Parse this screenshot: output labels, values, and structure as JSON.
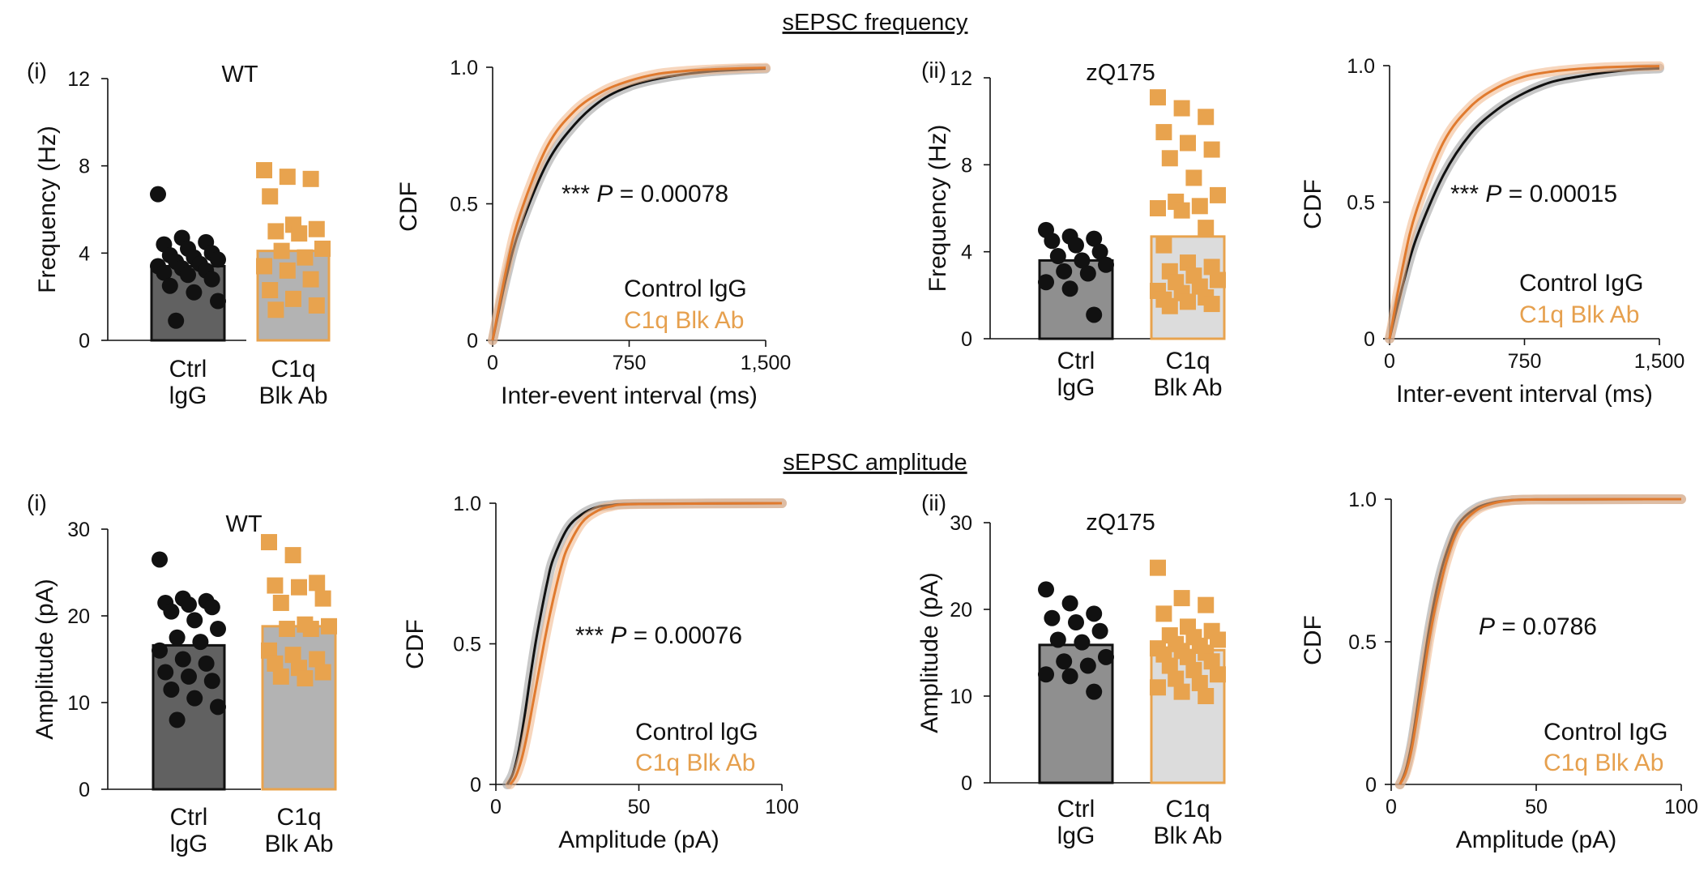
{
  "sections": [
    {
      "title": "sEPSC frequency"
    },
    {
      "title": "sEPSC amplitude"
    }
  ],
  "colors": {
    "ctrl_dot": "#111111",
    "ab_square": "#E8A34E",
    "bar_ctrl_wt": "#616161",
    "bar_ctrl_zq": "#8F8F8F",
    "bar_ab_wt": "#B3B3B3",
    "bar_ab_zq": "#DCDCDC",
    "cdf_ctrl": "#111111",
    "cdf_ab": "#E07A2E",
    "legend_ab_text": "#E6A04E"
  },
  "chart_data": [
    {
      "id": "freq-wt-bar",
      "type": "bar",
      "panel_label": "(i)",
      "title": "WT",
      "categories": [
        "Ctrl\nlgG",
        "C1q\nBlk Ab"
      ],
      "values": [
        3.4,
        4.1
      ],
      "ylabel": "Frequency (Hz)",
      "ylim": [
        0,
        12
      ],
      "yticks": [
        "0",
        "4",
        "8",
        "12"
      ],
      "points": [
        [
          6.7,
          4.7,
          4.5,
          4.4,
          4.2,
          4.0,
          3.9,
          3.8,
          3.7,
          3.6,
          3.5,
          3.4,
          3.3,
          3.2,
          3.1,
          3.0,
          2.8,
          2.5,
          2.2,
          1.8,
          0.9
        ],
        [
          7.8,
          7.5,
          7.4,
          6.6,
          5.3,
          5.1,
          5.0,
          4.9,
          4.2,
          4.1,
          3.8,
          3.4,
          3.2,
          2.8,
          2.3,
          1.9,
          1.6,
          1.4
        ]
      ]
    },
    {
      "id": "freq-wt-cdf",
      "type": "line",
      "xlabel": "Inter-event interval (ms)",
      "ylabel": "CDF",
      "xlim": [
        0,
        1500
      ],
      "ylim": [
        0,
        1
      ],
      "xticks": [
        "0",
        "750",
        "1,500"
      ],
      "yticks": [
        "0",
        "0.5",
        "1.0"
      ],
      "annotation": {
        "stars": "***",
        "p": "P",
        "rest": " = 0.00078"
      },
      "series": [
        {
          "name": "Control lgG",
          "tau": 285,
          "x": [
            0,
            75,
            150,
            300,
            450,
            600,
            750,
            900,
            1050,
            1200,
            1350,
            1500
          ],
          "y": [
            0,
            0.23,
            0.41,
            0.65,
            0.79,
            0.88,
            0.93,
            0.957,
            0.974,
            0.985,
            0.991,
            0.995
          ]
        },
        {
          "name": "C1q Blk Ab",
          "tau": 245,
          "x": [
            0,
            75,
            150,
            300,
            450,
            600,
            750,
            900,
            1050,
            1200,
            1350,
            1500
          ],
          "y": [
            0,
            0.26,
            0.46,
            0.71,
            0.84,
            0.91,
            0.95,
            0.975,
            0.986,
            0.992,
            0.996,
            0.998
          ]
        }
      ]
    },
    {
      "id": "freq-zq-bar",
      "type": "bar",
      "panel_label": "(ii)",
      "title": "zQ175",
      "categories": [
        "Ctrl\nlgG",
        "C1q\nBlk Ab"
      ],
      "values": [
        3.6,
        4.7
      ],
      "ylabel": "Frequency (Hz)",
      "ylim": [
        0,
        12
      ],
      "yticks": [
        "0",
        "4",
        "8",
        "12"
      ],
      "points": [
        [
          5.0,
          4.7,
          4.6,
          4.5,
          4.3,
          4.0,
          3.8,
          3.6,
          3.4,
          3.1,
          3.0,
          2.6,
          2.3,
          1.1
        ],
        [
          11.1,
          10.6,
          10.2,
          9.5,
          9.0,
          8.7,
          8.3,
          7.4,
          6.6,
          6.3,
          6.1,
          6.0,
          5.9,
          5.1,
          4.3,
          3.5,
          3.3,
          3.1,
          2.9,
          2.7,
          2.6,
          2.4,
          2.2,
          2.1,
          1.9,
          1.8,
          1.7,
          1.6,
          1.5
        ]
      ]
    },
    {
      "id": "freq-zq-cdf",
      "type": "line",
      "xlabel": "Inter-event interval (ms)",
      "ylabel": "CDF",
      "xlim": [
        0,
        1500
      ],
      "ylim": [
        0,
        1
      ],
      "xticks": [
        "0",
        "750",
        "1,500"
      ],
      "yticks": [
        "0",
        "0.5",
        "1.0"
      ],
      "annotation": {
        "stars": "***",
        "p": "P",
        "rest": " = 0.00015"
      },
      "series": [
        {
          "name": "Control IgG",
          "tau": 330,
          "x": [
            0,
            75,
            150,
            300,
            450,
            600,
            750,
            900,
            1050,
            1200,
            1350,
            1500
          ],
          "y": [
            0,
            0.2,
            0.37,
            0.6,
            0.75,
            0.84,
            0.9,
            0.94,
            0.96,
            0.975,
            0.985,
            0.99
          ]
        },
        {
          "name": "C1q Blk Ab",
          "tau": 235,
          "x": [
            0,
            75,
            150,
            300,
            450,
            600,
            750,
            900,
            1050,
            1200,
            1350,
            1500
          ],
          "y": [
            0,
            0.27,
            0.47,
            0.72,
            0.85,
            0.92,
            0.96,
            0.978,
            0.988,
            0.994,
            0.997,
            0.998
          ]
        }
      ]
    },
    {
      "id": "amp-wt-bar",
      "type": "bar",
      "panel_label": "(i)",
      "title": "WT",
      "categories": [
        "Ctrl\nlgG",
        "C1q\nBlk Ab"
      ],
      "values": [
        16.6,
        18.8
      ],
      "ylabel": "Amplitude (pA)",
      "ylim": [
        0,
        30
      ],
      "yticks": [
        "0",
        "10",
        "20",
        "30"
      ],
      "points": [
        [
          26.5,
          22.0,
          21.7,
          21.5,
          21.3,
          21.0,
          20.5,
          19.5,
          18.5,
          17.5,
          17.0,
          16.0,
          15.0,
          14.5,
          13.5,
          13.0,
          12.5,
          11.5,
          10.5,
          9.5,
          8.0
        ],
        [
          28.5,
          27.0,
          23.8,
          23.5,
          23.3,
          22.0,
          21.5,
          19.0,
          18.8,
          18.5,
          18.5,
          16.0,
          15.5,
          15.0,
          14.5,
          14.0,
          13.5,
          13.0,
          12.8
        ]
      ]
    },
    {
      "id": "amp-wt-cdf",
      "type": "line",
      "xlabel": "Amplitude (pA)",
      "ylabel": "CDF",
      "xlim": [
        0,
        100
      ],
      "ylim": [
        0,
        1
      ],
      "xticks": [
        "0",
        "50",
        "100"
      ],
      "yticks": [
        "0",
        "0.5",
        "1.0"
      ],
      "annotation": {
        "stars": "***",
        "p": "P",
        "rest": " = 0.00076"
      },
      "series": [
        {
          "name": "Control lgG",
          "x": [
            4,
            6,
            8,
            10,
            12,
            14,
            16,
            18,
            20,
            25,
            30,
            35,
            40,
            50,
            100
          ],
          "y": [
            0,
            0.04,
            0.12,
            0.24,
            0.38,
            0.51,
            0.62,
            0.72,
            0.8,
            0.91,
            0.96,
            0.985,
            0.993,
            0.998,
            1.0
          ]
        },
        {
          "name": "C1q Blk Ab",
          "x": [
            5,
            7,
            9,
            11,
            13,
            15,
            17,
            19,
            21,
            23,
            25,
            30,
            35,
            40,
            50,
            100
          ],
          "y": [
            0,
            0.03,
            0.09,
            0.18,
            0.29,
            0.4,
            0.51,
            0.61,
            0.7,
            0.78,
            0.84,
            0.93,
            0.97,
            0.988,
            0.997,
            1.0
          ]
        }
      ]
    },
    {
      "id": "amp-zq-bar",
      "type": "bar",
      "panel_label": "(ii)",
      "title": "zQ175",
      "categories": [
        "Ctrl\nlgG",
        "C1q\nBlk Ab"
      ],
      "values": [
        15.9,
        15.3
      ],
      "ylabel": "Amplitude (pA)",
      "ylim": [
        0,
        30
      ],
      "yticks": [
        "0",
        "10",
        "20",
        "30"
      ],
      "points": [
        [
          22.3,
          20.7,
          19.5,
          19.0,
          18.5,
          17.5,
          16.5,
          16.2,
          14.5,
          14.0,
          13.5,
          12.5,
          12.3,
          10.5
        ],
        [
          24.8,
          21.3,
          20.5,
          19.5,
          18.0,
          17.5,
          17.0,
          16.8,
          16.5,
          16.0,
          15.8,
          15.5,
          15.2,
          15.0,
          14.8,
          14.5,
          14.0,
          13.5,
          13.0,
          12.5,
          12.0,
          11.5,
          11.0,
          10.5,
          10.0
        ]
      ]
    },
    {
      "id": "amp-zq-cdf",
      "type": "line",
      "xlabel": "Amplitude (pA)",
      "ylabel": "CDF",
      "xlim": [
        0,
        100
      ],
      "ylim": [
        0,
        1
      ],
      "xticks": [
        "0",
        "50",
        "100"
      ],
      "yticks": [
        "0",
        "0.5",
        "1.0"
      ],
      "annotation": {
        "stars": "",
        "p": "P",
        "rest": " = 0.0786"
      },
      "series": [
        {
          "name": "Control IgG",
          "x": [
            3,
            5,
            7,
            9,
            11,
            13,
            15,
            17,
            19,
            22,
            25,
            30,
            35,
            40,
            50,
            100
          ],
          "y": [
            0,
            0.05,
            0.14,
            0.27,
            0.41,
            0.54,
            0.65,
            0.74,
            0.81,
            0.89,
            0.935,
            0.972,
            0.988,
            0.995,
            0.999,
            1.0
          ]
        },
        {
          "name": "C1q Blk Ab",
          "x": [
            3,
            5,
            7,
            9,
            11,
            13,
            15,
            17,
            19,
            22,
            25,
            30,
            35,
            40,
            50,
            100
          ],
          "y": [
            0,
            0.04,
            0.12,
            0.24,
            0.37,
            0.5,
            0.61,
            0.7,
            0.78,
            0.87,
            0.92,
            0.965,
            0.985,
            0.994,
            0.999,
            1.0
          ]
        }
      ]
    }
  ]
}
